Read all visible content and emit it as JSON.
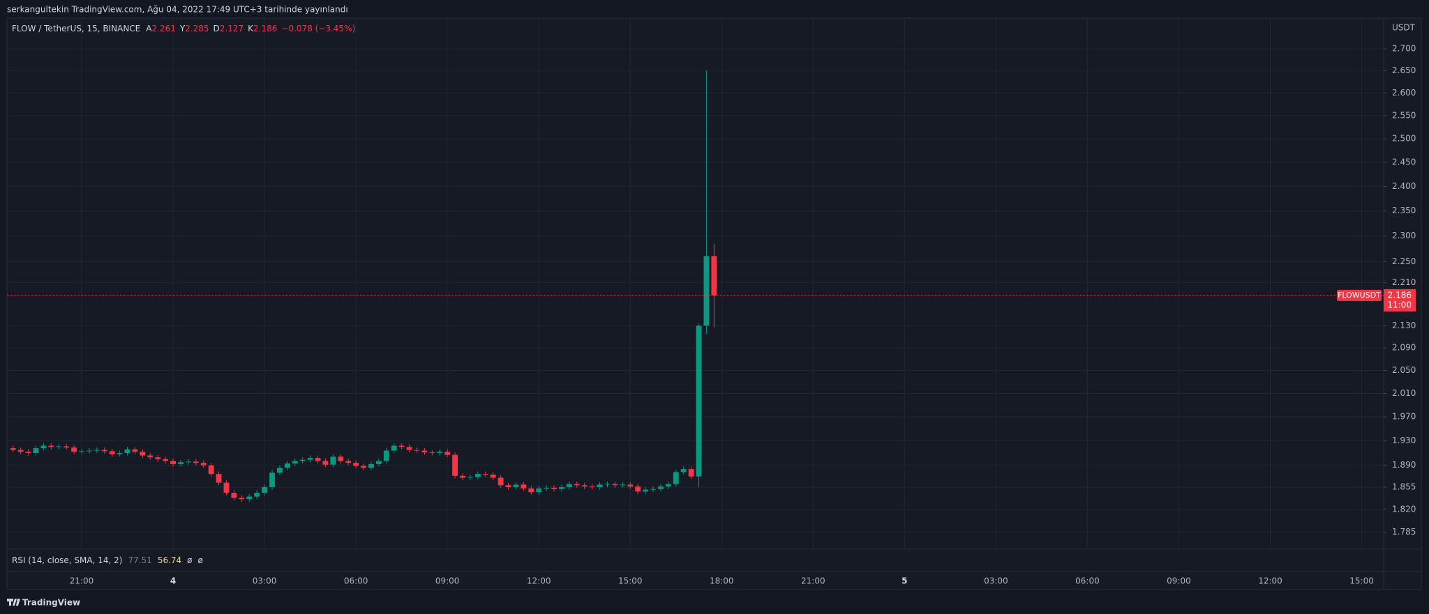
{
  "chart_data": {
    "type": "candlestick",
    "published": "serkangultekin TradingView.com, Ağu 04, 2022 17:49 UTC+3 tarihinde yayınlandı",
    "title": "FLOW / TetherUS, 15, BINANCE",
    "ohlc_labels": [
      "A",
      "Y",
      "D",
      "K"
    ],
    "change": "−0.078 (−3.45%)",
    "unit": "USDT",
    "symbol": "FLOWUSDT",
    "countdown": "11:00",
    "indicator": {
      "name": "RSI (14, close, SMA, 14, 2)",
      "values": [
        77.51,
        56.74
      ],
      "placeholders": [
        "ø",
        "ø"
      ]
    },
    "brand": "TradingView",
    "up_color": "#089981",
    "down_color": "#f23645",
    "grid": true,
    "log_scale": true,
    "xlim": [
      18.55,
      63.72
    ],
    "ylim": [
      1.759,
      2.772
    ],
    "xticks": [
      {
        "value": 21,
        "label": "21:00"
      },
      {
        "value": 24,
        "label": "4"
      },
      {
        "value": 27,
        "label": "03:00"
      },
      {
        "value": 30,
        "label": "06:00"
      },
      {
        "value": 33,
        "label": "09:00"
      },
      {
        "value": 36,
        "label": "12:00"
      },
      {
        "value": 39,
        "label": "15:00"
      },
      {
        "value": 42,
        "label": "18:00"
      },
      {
        "value": 45,
        "label": "21:00"
      },
      {
        "value": 48,
        "label": "5"
      },
      {
        "value": 51,
        "label": "03:00"
      },
      {
        "value": 54,
        "label": "06:00"
      },
      {
        "value": 57,
        "label": "09:00"
      },
      {
        "value": 60,
        "label": "12:00"
      },
      {
        "value": 63,
        "label": "15:00"
      }
    ],
    "yticks": [
      {
        "value": 2.7,
        "label": "2.700"
      },
      {
        "value": 2.65,
        "label": "2.650"
      },
      {
        "value": 2.6,
        "label": "2.600"
      },
      {
        "value": 2.55,
        "label": "2.550"
      },
      {
        "value": 2.5,
        "label": "2.500"
      },
      {
        "value": 2.45,
        "label": "2.450"
      },
      {
        "value": 2.4,
        "label": "2.400"
      },
      {
        "value": 2.35,
        "label": "2.350"
      },
      {
        "value": 2.3,
        "label": "2.300"
      },
      {
        "value": 2.25,
        "label": "2.250"
      },
      {
        "value": 2.21,
        "label": "2.210"
      },
      {
        "value": 2.13,
        "label": "2.130"
      },
      {
        "value": 2.09,
        "label": "2.090"
      },
      {
        "value": 2.05,
        "label": "2.050"
      },
      {
        "value": 2.01,
        "label": "2.010"
      },
      {
        "value": 1.97,
        "label": "1.970"
      },
      {
        "value": 1.93,
        "label": "1.930"
      },
      {
        "value": 1.89,
        "label": "1.890"
      },
      {
        "value": 1.855,
        "label": "1.855"
      },
      {
        "value": 1.82,
        "label": "1.820"
      },
      {
        "value": 1.785,
        "label": "1.785"
      }
    ],
    "x": [
      18.75,
      19,
      19.25,
      19.5,
      19.75,
      20,
      20.25,
      20.5,
      20.75,
      21,
      21.25,
      21.5,
      21.75,
      22,
      22.25,
      22.5,
      22.75,
      23,
      23.25,
      23.5,
      23.75,
      24,
      24.25,
      24.5,
      24.75,
      25,
      25.25,
      25.5,
      25.75,
      26,
      26.25,
      26.5,
      26.75,
      27,
      27.25,
      27.5,
      27.75,
      28,
      28.25,
      28.5,
      28.75,
      29,
      29.25,
      29.5,
      29.75,
      30,
      30.25,
      30.5,
      30.75,
      31,
      31.25,
      31.5,
      31.75,
      32,
      32.25,
      32.5,
      32.75,
      33,
      33.25,
      33.5,
      33.75,
      34,
      34.25,
      34.5,
      34.75,
      35,
      35.25,
      35.5,
      35.75,
      36,
      36.25,
      36.5,
      36.75,
      37,
      37.25,
      37.5,
      37.75,
      38,
      38.25,
      38.5,
      38.75,
      39,
      39.25,
      39.5,
      39.75,
      40,
      40.25,
      40.5,
      40.75,
      41,
      41.25,
      41.5,
      41.75
    ],
    "open": [
      1.918,
      1.915,
      1.912,
      1.91,
      1.918,
      1.922,
      1.92,
      1.921,
      1.919,
      1.912,
      1.913,
      1.914,
      1.915,
      1.913,
      1.908,
      1.91,
      1.916,
      1.912,
      1.906,
      1.903,
      1.9,
      1.897,
      1.892,
      1.895,
      1.896,
      1.894,
      1.89,
      1.876,
      1.862,
      1.846,
      1.838,
      1.836,
      1.84,
      1.846,
      1.855,
      1.878,
      1.886,
      1.893,
      1.897,
      1.899,
      1.902,
      1.897,
      1.891,
      1.904,
      1.897,
      1.894,
      1.889,
      1.886,
      1.892,
      1.897,
      1.914,
      1.922,
      1.92,
      1.915,
      1.914,
      1.911,
      1.91,
      1.912,
      1.907,
      1.873,
      1.87,
      1.871,
      1.876,
      1.875,
      1.87,
      1.858,
      1.855,
      1.859,
      1.853,
      1.847,
      1.853,
      1.854,
      1.852,
      1.855,
      1.86,
      1.858,
      1.856,
      1.855,
      1.859,
      1.86,
      1.858,
      1.859,
      1.856,
      1.848,
      1.851,
      1.852,
      1.856,
      1.86,
      1.879,
      1.884,
      1.872,
      2.13,
      2.261
    ],
    "high": [
      1.922,
      1.919,
      1.916,
      1.922,
      1.926,
      1.926,
      1.925,
      1.925,
      1.923,
      1.917,
      1.918,
      1.919,
      1.919,
      1.917,
      1.914,
      1.92,
      1.92,
      1.916,
      1.91,
      1.907,
      1.904,
      1.901,
      1.899,
      1.9,
      1.9,
      1.898,
      1.894,
      1.88,
      1.866,
      1.85,
      1.842,
      1.844,
      1.85,
      1.859,
      1.882,
      1.89,
      1.897,
      1.901,
      1.903,
      1.906,
      1.906,
      1.901,
      1.908,
      1.908,
      1.901,
      1.898,
      1.893,
      1.896,
      1.901,
      1.918,
      1.926,
      1.926,
      1.924,
      1.919,
      1.918,
      1.915,
      1.916,
      1.916,
      1.911,
      1.877,
      1.875,
      1.88,
      1.88,
      1.879,
      1.874,
      1.862,
      1.863,
      1.863,
      1.857,
      1.857,
      1.858,
      1.858,
      1.859,
      1.864,
      1.864,
      1.862,
      1.86,
      1.863,
      1.864,
      1.864,
      1.863,
      1.863,
      1.86,
      1.855,
      1.856,
      1.86,
      1.864,
      1.883,
      1.888,
      1.888,
      2.134,
      2.65,
      2.285
    ],
    "low": [
      1.911,
      1.908,
      1.906,
      1.906,
      1.914,
      1.916,
      1.916,
      1.915,
      1.908,
      1.908,
      1.909,
      1.91,
      1.909,
      1.904,
      1.904,
      1.906,
      1.908,
      1.902,
      1.899,
      1.896,
      1.893,
      1.888,
      1.888,
      1.891,
      1.89,
      1.886,
      1.872,
      1.858,
      1.842,
      1.834,
      1.832,
      1.832,
      1.836,
      1.842,
      1.851,
      1.874,
      1.882,
      1.889,
      1.893,
      1.895,
      1.893,
      1.887,
      1.887,
      1.893,
      1.89,
      1.885,
      1.882,
      1.882,
      1.888,
      1.893,
      1.91,
      1.916,
      1.911,
      1.91,
      1.907,
      1.906,
      1.906,
      1.903,
      1.869,
      1.866,
      1.866,
      1.867,
      1.871,
      1.866,
      1.854,
      1.851,
      1.851,
      1.849,
      1.843,
      1.843,
      1.849,
      1.848,
      1.848,
      1.851,
      1.854,
      1.852,
      1.851,
      1.851,
      1.855,
      1.854,
      1.854,
      1.852,
      1.844,
      1.844,
      1.847,
      1.848,
      1.852,
      1.856,
      1.875,
      1.868,
      1.855,
      2.115,
      2.127
    ],
    "close": [
      1.915,
      1.912,
      1.91,
      1.918,
      1.922,
      1.92,
      1.921,
      1.919,
      1.912,
      1.913,
      1.914,
      1.915,
      1.913,
      1.908,
      1.91,
      1.916,
      1.912,
      1.906,
      1.903,
      1.9,
      1.897,
      1.892,
      1.895,
      1.896,
      1.894,
      1.89,
      1.876,
      1.862,
      1.846,
      1.838,
      1.836,
      1.84,
      1.846,
      1.855,
      1.878,
      1.886,
      1.893,
      1.897,
      1.899,
      1.902,
      1.897,
      1.891,
      1.904,
      1.897,
      1.894,
      1.889,
      1.886,
      1.892,
      1.897,
      1.914,
      1.922,
      1.92,
      1.915,
      1.914,
      1.911,
      1.91,
      1.912,
      1.907,
      1.873,
      1.87,
      1.871,
      1.876,
      1.875,
      1.87,
      1.858,
      1.855,
      1.859,
      1.853,
      1.847,
      1.853,
      1.854,
      1.852,
      1.855,
      1.86,
      1.858,
      1.856,
      1.855,
      1.859,
      1.86,
      1.858,
      1.859,
      1.856,
      1.848,
      1.851,
      1.852,
      1.856,
      1.86,
      1.879,
      1.884,
      1.872,
      2.13,
      2.261,
      2.186
    ]
  }
}
